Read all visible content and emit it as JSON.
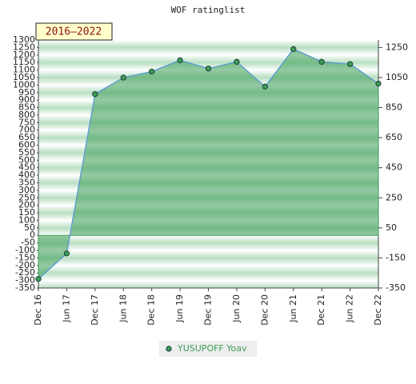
{
  "chart_data": {
    "type": "line",
    "title": "WOF ratinglist",
    "annotation": "2016–2022",
    "categories": [
      "Dec 16",
      "Jun 17",
      "Dec 17",
      "Jun 18",
      "Dec 18",
      "Jun 19",
      "Dec 19",
      "Jun 20",
      "Dec 20",
      "Jun 21",
      "Dec 21",
      "Jun 22",
      "Dec 22"
    ],
    "series": [
      {
        "name": "YUSUPOFF Yoav",
        "color": "#3c9c55",
        "values": [
          -290,
          -120,
          940,
          1050,
          1090,
          1165,
          1110,
          1155,
          990,
          1240,
          1155,
          1140,
          1010
        ]
      }
    ],
    "ylim": [
      -350,
      1300
    ],
    "yticks": [
      -350,
      -300,
      -250,
      -200,
      -150,
      -100,
      -50,
      0,
      50,
      100,
      150,
      200,
      250,
      300,
      350,
      400,
      450,
      500,
      550,
      600,
      650,
      700,
      750,
      800,
      850,
      900,
      950,
      1000,
      1050,
      1100,
      1150,
      1200,
      1250,
      1300
    ],
    "y2lim": [
      -350,
      1300
    ],
    "y2ticks": [
      -350,
      -150,
      50,
      250,
      450,
      650,
      850,
      1050,
      1250
    ]
  }
}
